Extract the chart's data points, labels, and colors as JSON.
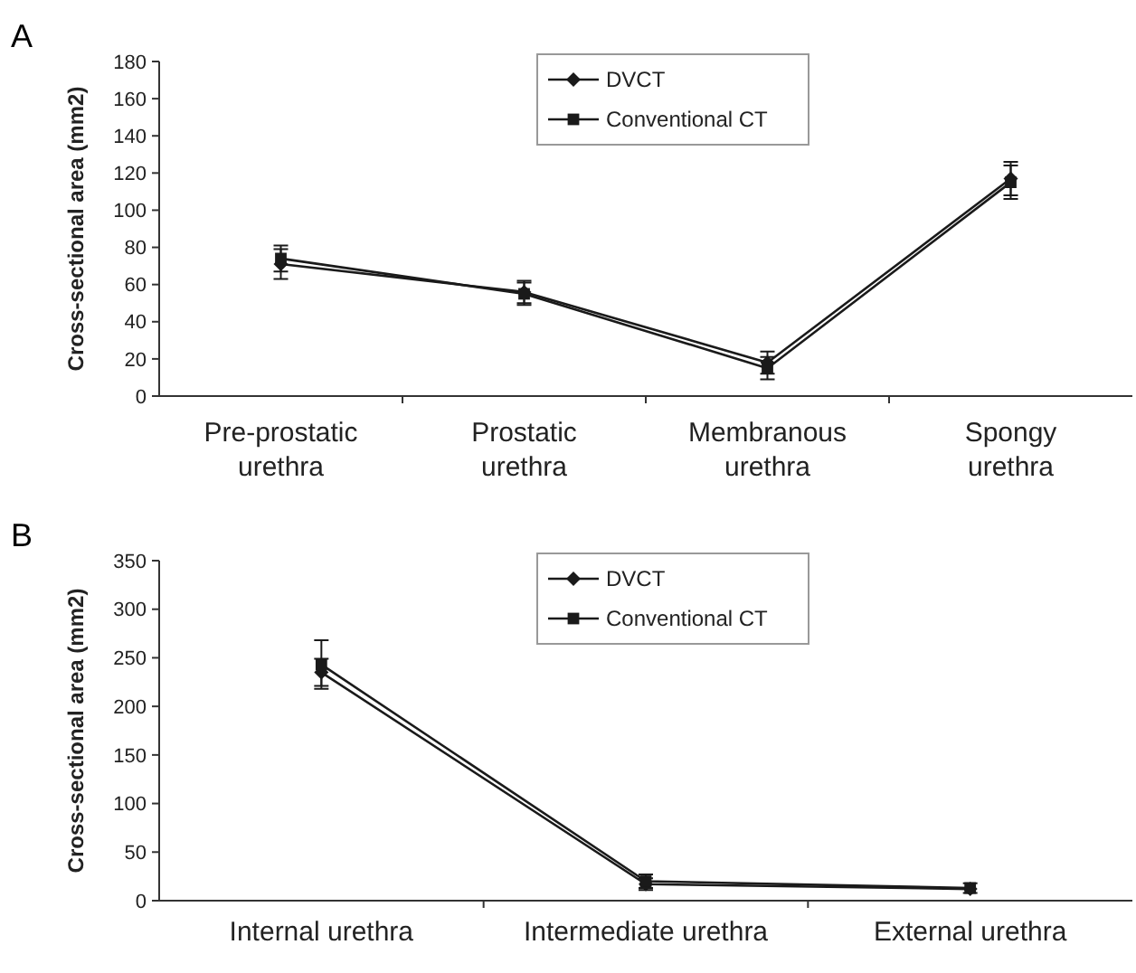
{
  "chart_data": [
    {
      "type": "line",
      "title": "A",
      "ylabel": "Cross-sectional area (mm2)",
      "categories": [
        "Pre-prostatic urethra",
        "Prostatic urethra",
        "Membranous urethra",
        "Spongy urethra"
      ],
      "ylim": [
        0,
        180
      ],
      "yticks": [
        0,
        20,
        40,
        60,
        80,
        100,
        120,
        140,
        160,
        180
      ],
      "legend": "top",
      "series": [
        {
          "name": "DVCT",
          "color": "#1a1a1a",
          "marker": "diamond",
          "values": [
            71,
            56,
            18,
            117
          ],
          "errors": [
            8,
            6,
            6,
            9
          ]
        },
        {
          "name": "Conventional CT",
          "color": "#1a1a1a",
          "marker": "square",
          "values": [
            74,
            55,
            15,
            115
          ],
          "errors": [
            7,
            6,
            6,
            9
          ]
        }
      ]
    },
    {
      "type": "line",
      "title": "B",
      "ylabel": "Cross-sectional area (mm2)",
      "categories": [
        "Internal urethra",
        "Intermediate urethra",
        "External urethra"
      ],
      "ylim": [
        0,
        350
      ],
      "yticks": [
        0,
        50,
        100,
        150,
        200,
        250,
        300,
        350
      ],
      "legend": "top",
      "series": [
        {
          "name": "DVCT",
          "color": "#1a1a1a",
          "marker": "diamond",
          "values": [
            235,
            17,
            12
          ],
          "errors": [
            14,
            6,
            null
          ]
        },
        {
          "name": "Conventional CT",
          "color": "#1a1a1a",
          "marker": "square",
          "values": [
            243,
            20,
            13
          ],
          "errors": [
            25,
            7,
            5
          ]
        }
      ]
    }
  ]
}
